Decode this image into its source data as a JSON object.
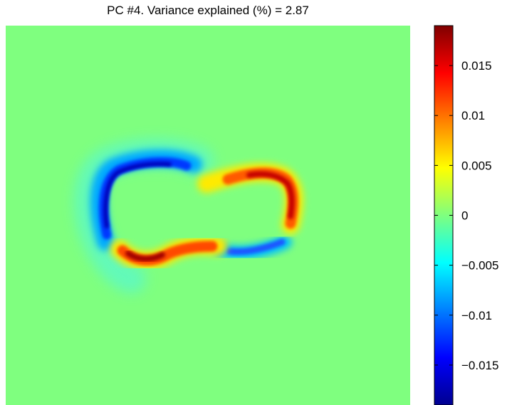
{
  "chart_data": {
    "type": "heatmap",
    "title": "PC #4. Variance explained (%) = 2.87",
    "xlabel": "",
    "ylabel": "",
    "colormap": "jet",
    "colorbar": {
      "range": [
        -0.019,
        0.019
      ],
      "ticks": [
        {
          "value": 0.015,
          "label": "0.015"
        },
        {
          "value": 0.01,
          "label": "0.01"
        },
        {
          "value": 0.005,
          "label": "0.005"
        },
        {
          "value": 0,
          "label": "0"
        },
        {
          "value": -0.005,
          "label": "−0.005"
        },
        {
          "value": -0.01,
          "label": "−0.01"
        },
        {
          "value": -0.015,
          "label": "−0.015"
        }
      ]
    },
    "background_value": 0.0008,
    "grid": false,
    "axes_ticks_visible": false
  }
}
